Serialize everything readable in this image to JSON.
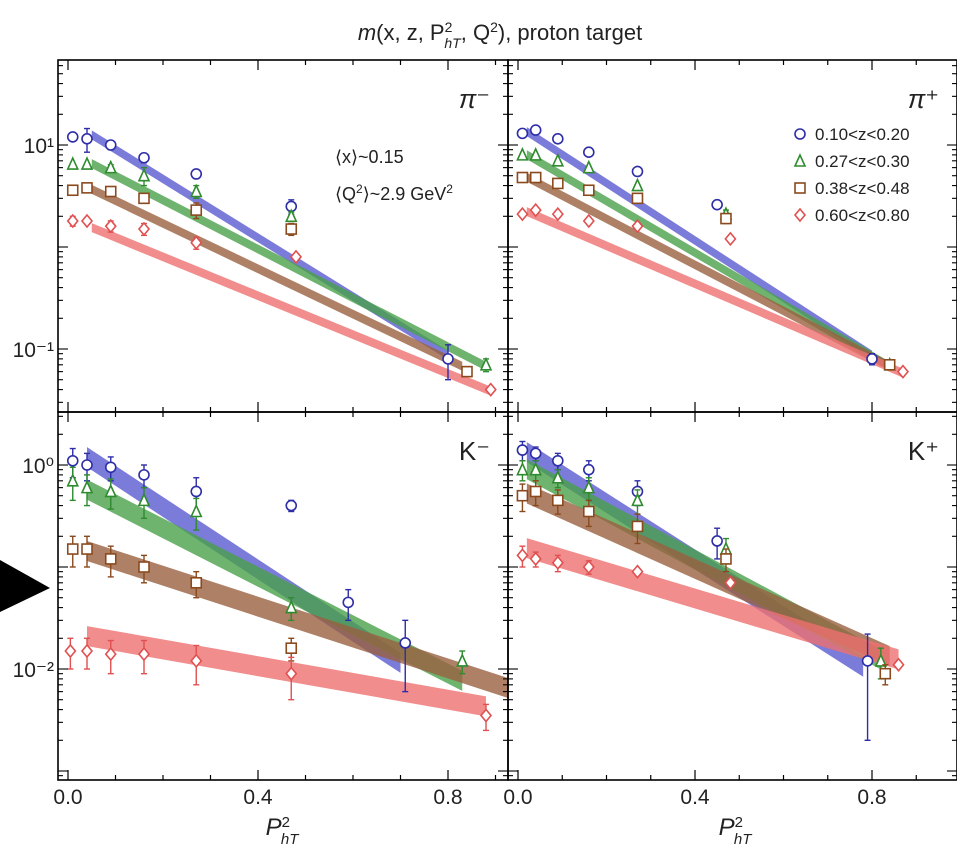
{
  "title_parts": {
    "m": "m",
    "args": "(x, z, P",
    "pow": "2",
    "sub": "hT",
    "rest": ", Q",
    "pow2": "2",
    "close": "), proton target"
  },
  "annotation": {
    "x_mean": "⟨x⟩~0.15",
    "q2_mean_prefix": "⟨Q",
    "q2_pow": "2",
    "q2_mean_suffix": "⟩~2.9 GeV",
    "q2_unit_pow": "2"
  },
  "xlabel": {
    "base": "P",
    "sup": "2",
    "sub": "hT"
  },
  "x_ticks": [
    "0.0",
    "0.4",
    "0.8"
  ],
  "legend": [
    {
      "label": "0.10<z<0.20",
      "marker": "circle",
      "color": "#2d2da8"
    },
    {
      "label": "0.27<z<0.30",
      "marker": "triangle",
      "color": "#2e8b2e"
    },
    {
      "label": "0.38<z<0.48",
      "marker": "square",
      "color": "#8b4a1e"
    },
    {
      "label": "0.60<z<0.80",
      "marker": "diamond",
      "color": "#e05050"
    }
  ],
  "colors": {
    "blue": "#2d2da8",
    "green": "#2e8b2e",
    "brown": "#8b4a1e",
    "red": "#e05050",
    "band_blue": "#5a5ad0",
    "band_green": "#4aa04a",
    "band_brown": "#9a6040",
    "band_red": "#ee7070"
  },
  "chart_data": [
    {
      "type": "scatter",
      "panel": "π⁻",
      "label": "π⁻",
      "xlim": [
        0,
        0.95
      ],
      "ylim": [
        0.03,
        30
      ],
      "yscale": "log",
      "y_ticks": [
        "10¹",
        "10⁻¹"
      ],
      "series": [
        {
          "name": "0.10<z<0.20",
          "x": [
            0.01,
            0.04,
            0.09,
            0.16,
            0.27,
            0.47,
            0.8
          ],
          "y": [
            12,
            11.5,
            10,
            7.5,
            5.2,
            2.5,
            0.08
          ],
          "err": [
            0,
            3,
            1,
            0.8,
            0.5,
            0.4,
            0.03
          ],
          "band": {
            "x": [
              0.05,
              0.8
            ],
            "y": [
              13,
              0.09
            ]
          }
        },
        {
          "name": "0.27<z<0.30",
          "x": [
            0.01,
            0.04,
            0.09,
            0.16,
            0.27,
            0.47,
            0.88
          ],
          "y": [
            6.5,
            6.5,
            6,
            5,
            3.5,
            2,
            0.07
          ],
          "err": [
            0,
            0,
            0.4,
            1,
            0.5,
            0.2,
            0.01
          ],
          "band": {
            "x": [
              0.05,
              0.88
            ],
            "y": [
              6.8,
              0.07
            ]
          }
        },
        {
          "name": "0.38<z<0.48",
          "x": [
            0.01,
            0.04,
            0.09,
            0.16,
            0.27,
            0.47,
            0.84
          ],
          "y": [
            3.6,
            3.8,
            3.5,
            3,
            2.3,
            1.5,
            0.06
          ],
          "err": [
            0,
            0,
            0,
            0,
            0.4,
            0.2,
            0.005
          ],
          "band": {
            "x": [
              0.05,
              0.83
            ],
            "y": [
              3.8,
              0.07
            ]
          }
        },
        {
          "name": "0.60<z<0.80",
          "x": [
            0.01,
            0.04,
            0.09,
            0.16,
            0.27,
            0.48,
            0.89
          ],
          "y": [
            1.8,
            1.8,
            1.6,
            1.5,
            1.1,
            0.8,
            0.04
          ],
          "err": [
            0.2,
            0,
            0.2,
            0.2,
            0.15,
            0,
            0
          ],
          "band": {
            "x": [
              0.05,
              0.89
            ],
            "y": [
              1.6,
              0.04
            ]
          }
        }
      ]
    },
    {
      "type": "scatter",
      "panel": "π⁺",
      "label": "π⁺",
      "xlim": [
        0,
        0.95
      ],
      "ylim": [
        0.03,
        30
      ],
      "yscale": "log",
      "series": [
        {
          "name": "0.10<z<0.20",
          "x": [
            0.01,
            0.04,
            0.09,
            0.16,
            0.27,
            0.45,
            0.8
          ],
          "y": [
            13,
            14,
            11.5,
            8.5,
            5.5,
            2.6,
            0.08
          ],
          "err": [
            0,
            0,
            0,
            0.5,
            0.5,
            0.2,
            0.01
          ],
          "band": {
            "x": [
              0.02,
              0.8
            ],
            "y": [
              14,
              0.09
            ]
          }
        },
        {
          "name": "0.27<z<0.30",
          "x": [
            0.01,
            0.04,
            0.09,
            0.16,
            0.27,
            0.47,
            0.84
          ],
          "y": [
            8,
            8,
            7,
            6,
            4,
            2.1,
            0.07
          ],
          "err": [
            0,
            0,
            0,
            0,
            0,
            0.2,
            0
          ],
          "band": {
            "x": [
              0.02,
              0.84
            ],
            "y": [
              8.3,
              0.07
            ]
          }
        },
        {
          "name": "0.38<z<0.48",
          "x": [
            0.01,
            0.04,
            0.09,
            0.16,
            0.27,
            0.47,
            0.84
          ],
          "y": [
            4.8,
            4.8,
            4.2,
            3.6,
            3,
            1.9,
            0.07
          ],
          "err": [
            0,
            0,
            0,
            0,
            0,
            0.2,
            0
          ],
          "band": {
            "x": [
              0.02,
              0.84
            ],
            "y": [
              5,
              0.07
            ]
          }
        },
        {
          "name": "0.60<z<0.80",
          "x": [
            0.01,
            0.04,
            0.09,
            0.16,
            0.27,
            0.48,
            0.87
          ],
          "y": [
            2.1,
            2.3,
            2.1,
            1.8,
            1.6,
            1.2,
            0.06
          ],
          "err": [
            0.1,
            0,
            0,
            0,
            0,
            0,
            0
          ],
          "band": {
            "x": [
              0.02,
              0.87
            ],
            "y": [
              2.3,
              0.06
            ]
          }
        }
      ]
    },
    {
      "type": "scatter",
      "panel": "K⁻",
      "label": "K⁻",
      "xlim": [
        0,
        0.95
      ],
      "ylim": [
        0.002,
        2
      ],
      "yscale": "log",
      "y_ticks": [
        "10⁰",
        "10⁻²"
      ],
      "series": [
        {
          "name": "0.10<z<0.20",
          "x": [
            0.01,
            0.04,
            0.09,
            0.16,
            0.27,
            0.47,
            0.59,
            0.71
          ],
          "y": [
            1.1,
            1.0,
            0.95,
            0.8,
            0.55,
            0.4,
            0.045,
            0.018
          ],
          "err": [
            0.35,
            0.3,
            0.25,
            0.2,
            0.2,
            0.05,
            0.015,
            0.012
          ],
          "band": {
            "x": [
              0.04,
              0.7
            ],
            "y": [
              1.25,
              0.012
            ]
          }
        },
        {
          "name": "0.27<z<0.30",
          "x": [
            0.01,
            0.04,
            0.09,
            0.16,
            0.27,
            0.47,
            0.83
          ],
          "y": [
            0.7,
            0.6,
            0.55,
            0.45,
            0.35,
            0.04,
            0.012
          ],
          "err": [
            0.25,
            0.2,
            0.18,
            0.15,
            0.12,
            0.01,
            0.003
          ],
          "band": {
            "x": [
              0.04,
              0.83
            ],
            "y": [
              0.6,
              0.008
            ]
          }
        },
        {
          "name": "0.38<z<0.48",
          "x": [
            0.01,
            0.04,
            0.09,
            0.16,
            0.27,
            0.47,
            0.94
          ],
          "y": [
            0.15,
            0.15,
            0.12,
            0.1,
            0.07,
            0.016,
            0.007
          ],
          "err": [
            0.05,
            0.05,
            0.04,
            0.03,
            0.02,
            0.004,
            0.003
          ],
          "band": {
            "x": [
              0.04,
              0.94
            ],
            "y": [
              0.15,
              0.0065
            ]
          }
        },
        {
          "name": "0.60<z<0.80",
          "x": [
            0.005,
            0.04,
            0.09,
            0.16,
            0.27,
            0.47,
            0.88
          ],
          "y": [
            0.015,
            0.015,
            0.014,
            0.014,
            0.012,
            0.009,
            0.0035
          ],
          "err": [
            0.005,
            0.005,
            0.005,
            0.005,
            0.005,
            0.004,
            0.001
          ],
          "band": {
            "x": [
              0.04,
              0.88
            ],
            "y": [
              0.022,
              0.0045
            ]
          }
        }
      ]
    },
    {
      "type": "scatter",
      "panel": "K⁺",
      "label": "K⁺",
      "xlim": [
        0,
        0.95
      ],
      "ylim": [
        0.002,
        2
      ],
      "yscale": "log",
      "series": [
        {
          "name": "0.10<z<0.20",
          "x": [
            0.01,
            0.04,
            0.09,
            0.16,
            0.27,
            0.45,
            0.79
          ],
          "y": [
            1.4,
            1.3,
            1.1,
            0.9,
            0.55,
            0.18,
            0.012
          ],
          "err": [
            0.3,
            0.2,
            0.2,
            0.2,
            0.15,
            0.06,
            0.01
          ],
          "band": {
            "x": [
              0.02,
              0.78
            ],
            "y": [
              1.4,
              0.011
            ]
          }
        },
        {
          "name": "0.27<z<0.30",
          "x": [
            0.01,
            0.04,
            0.09,
            0.16,
            0.27,
            0.47,
            0.82
          ],
          "y": [
            0.9,
            0.9,
            0.75,
            0.6,
            0.45,
            0.15,
            0.012
          ],
          "err": [
            0.2,
            0.2,
            0.15,
            0.15,
            0.12,
            0.04,
            0.004
          ],
          "band": {
            "x": [
              0.02,
              0.82
            ],
            "y": [
              0.95,
              0.013
            ]
          }
        },
        {
          "name": "0.38<z<0.48",
          "x": [
            0.01,
            0.04,
            0.09,
            0.16,
            0.27,
            0.47,
            0.83
          ],
          "y": [
            0.5,
            0.55,
            0.45,
            0.35,
            0.25,
            0.12,
            0.009
          ],
          "err": [
            0.15,
            0.15,
            0.12,
            0.1,
            0.08,
            0.03,
            0.002
          ],
          "band": {
            "x": [
              0.02,
              0.84
            ],
            "y": [
              0.55,
              0.014
            ]
          }
        },
        {
          "name": "0.60<z<0.80",
          "x": [
            0.01,
            0.04,
            0.09,
            0.16,
            0.27,
            0.48,
            0.86
          ],
          "y": [
            0.13,
            0.12,
            0.11,
            0.1,
            0.09,
            0.07,
            0.011
          ],
          "err": [
            0.03,
            0.02,
            0.02,
            0.015,
            0,
            0,
            0
          ],
          "band": {
            "x": [
              0.02,
              0.86
            ],
            "y": [
              0.16,
              0.013
            ]
          }
        }
      ]
    }
  ]
}
